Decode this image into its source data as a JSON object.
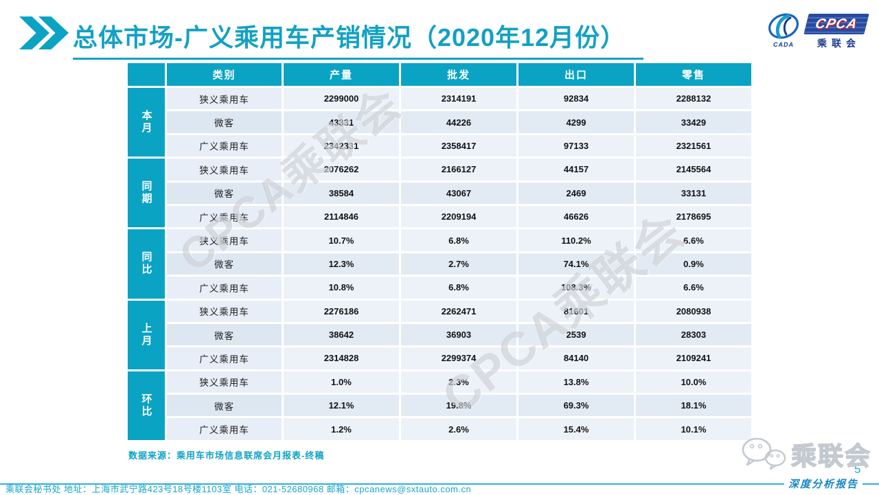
{
  "slide": {
    "title": "总体市场-广义乘用车产销情况（2020年12月份）",
    "page_number": "5",
    "source_note": "数据来源：乘用车市场信息联席会月报表-终稿",
    "watermark_text": "CPCA乘联会",
    "corner_logo_text": "乘联会",
    "footer": {
      "contact": "乘联会秘书处   地址：上海市武宁路423号18号楼1103室   电话：021-52680968    邮箱：cpcanews@sxtauto.com.cn",
      "report_label": "深度分析报告"
    },
    "logo": {
      "main_label": "CPCA",
      "sub_label": "CADA",
      "cn_label": "乘联会"
    }
  },
  "colors": {
    "teal_accent": "#0aa3c4",
    "title_teal": "#12a1c4",
    "row_light": "#edf2f9",
    "row_dark": "#e2eaf4",
    "footer_blue": "#1488c8",
    "logo_navy": "#1a3a8f"
  },
  "table": {
    "columns": [
      "类别",
      "产量",
      "批发",
      "出口",
      "零售"
    ],
    "groups": [
      {
        "label": "本月",
        "rows": [
          {
            "category": "狭义乘用车",
            "values": [
              "2299000",
              "2314191",
              "92834",
              "2288132"
            ]
          },
          {
            "category": "微客",
            "values": [
              "43331",
              "44226",
              "4299",
              "33429"
            ]
          },
          {
            "category": "广义乘用车",
            "values": [
              "2342331",
              "2358417",
              "97133",
              "2321561"
            ]
          }
        ]
      },
      {
        "label": "同期",
        "rows": [
          {
            "category": "狭义乘用车",
            "values": [
              "2076262",
              "2166127",
              "44157",
              "2145564"
            ]
          },
          {
            "category": "微客",
            "values": [
              "38584",
              "43067",
              "2469",
              "33131"
            ]
          },
          {
            "category": "广义乘用车",
            "values": [
              "2114846",
              "2209194",
              "46626",
              "2178695"
            ]
          }
        ]
      },
      {
        "label": "同比",
        "rows": [
          {
            "category": "狭义乘用车",
            "values": [
              "10.7%",
              "6.8%",
              "110.2%",
              "6.6%"
            ]
          },
          {
            "category": "微客",
            "values": [
              "12.3%",
              "2.7%",
              "74.1%",
              "0.9%"
            ]
          },
          {
            "category": "广义乘用车",
            "values": [
              "10.8%",
              "6.8%",
              "108.3%",
              "6.6%"
            ]
          }
        ]
      },
      {
        "label": "上月",
        "rows": [
          {
            "category": "狭义乘用车",
            "values": [
              "2276186",
              "2262471",
              "81601",
              "2080938"
            ]
          },
          {
            "category": "微客",
            "values": [
              "38642",
              "36903",
              "2539",
              "28303"
            ]
          },
          {
            "category": "广义乘用车",
            "values": [
              "2314828",
              "2299374",
              "84140",
              "2109241"
            ]
          }
        ]
      },
      {
        "label": "环比",
        "rows": [
          {
            "category": "狭义乘用车",
            "values": [
              "1.0%",
              "2.3%",
              "13.8%",
              "10.0%"
            ]
          },
          {
            "category": "微客",
            "values": [
              "12.1%",
              "19.8%",
              "69.3%",
              "18.1%"
            ]
          },
          {
            "category": "广义乘用车",
            "values": [
              "1.2%",
              "2.6%",
              "15.4%",
              "10.1%"
            ]
          }
        ]
      }
    ]
  }
}
